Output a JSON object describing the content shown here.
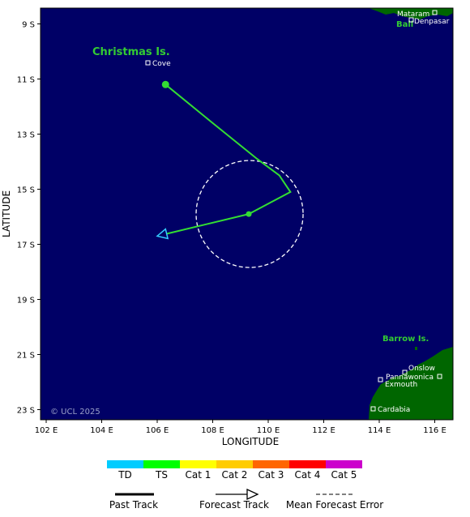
{
  "axes": {
    "xlabel": "LONGITUDE",
    "ylabel": "LATITUDE",
    "x_ticks": [
      "102 E",
      "104 E",
      "106 E",
      "108 E",
      "110 E",
      "112 E",
      "114 E",
      "116 E"
    ],
    "y_ticks": [
      "9 S",
      "11 S",
      "13 S",
      "15 S",
      "17 S",
      "19 S",
      "21 S",
      "23 S"
    ]
  },
  "colors": {
    "ocean": "#000066",
    "land": "#006600",
    "track": "#33dd33",
    "forecast_arrow": "#33ccff",
    "error_circle": "#ffffff"
  },
  "places": {
    "cove": "Cove",
    "mataram": "Mataram",
    "denpasar": "Denpasar",
    "onslow": "Onslow",
    "pannawonica": "Pannawonica",
    "exmouth": "Exmouth",
    "cardabia": "Cardabia"
  },
  "islands": {
    "christmas": "Christmas Is.",
    "bali": "Bali",
    "barrow": "Barrow Is."
  },
  "copyright": "© UCL 2025",
  "track": {
    "past_points": [
      [
        106.3,
        -11.2
      ],
      [
        108.0,
        -12.6
      ],
      [
        109.6,
        -13.9
      ],
      [
        110.4,
        -14.5
      ],
      [
        110.8,
        -15.1
      ]
    ],
    "current_position": [
      109.3,
      -15.9
    ],
    "forecast_end": [
      106.0,
      -16.7
    ]
  },
  "legend": {
    "categories": [
      {
        "label": "TD",
        "color": "#00ccff"
      },
      {
        "label": "TS",
        "color": "#00ff00"
      },
      {
        "label": "Cat 1",
        "color": "#ffff00"
      },
      {
        "label": "Cat 2",
        "color": "#ffcc00"
      },
      {
        "label": "Cat 3",
        "color": "#ff6600"
      },
      {
        "label": "Cat 4",
        "color": "#ff0000"
      },
      {
        "label": "Cat 5",
        "color": "#cc00cc"
      }
    ],
    "past_track": "Past Track",
    "forecast_track": "Forecast Track",
    "mean_error": "Mean Forecast Error"
  }
}
